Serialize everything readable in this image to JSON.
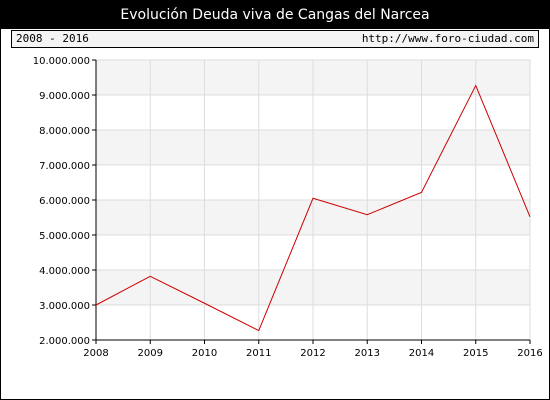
{
  "header": {
    "title": "Evolución Deuda viva de Cangas del Narcea",
    "range": "2008 - 2016",
    "url": "http://www.foro-ciudad.com"
  },
  "colors": {
    "line": "#cc0000",
    "band": "#f4f4f4",
    "grid": "#dddddd"
  },
  "chart_data": {
    "type": "line",
    "title": "Evolución Deuda viva de Cangas del Narcea",
    "x": [
      2008,
      2009,
      2010,
      2011,
      2012,
      2013,
      2014,
      2015,
      2016
    ],
    "series": [
      {
        "values": [
          3000000,
          3820000,
          3050000,
          2270000,
          6050000,
          5580000,
          6220000,
          9270000,
          5520000
        ]
      }
    ],
    "x_tick_labels": [
      "2008",
      "2009",
      "2010",
      "2011",
      "2012",
      "2013",
      "2014",
      "2015",
      "2016"
    ],
    "y_tick_labels": [
      "2.000.000",
      "3.000.000",
      "4.000.000",
      "5.000.000",
      "6.000.000",
      "7.000.000",
      "8.000.000",
      "9.000.000",
      "10.000.000"
    ],
    "y_ticks": [
      2000000,
      3000000,
      4000000,
      5000000,
      6000000,
      7000000,
      8000000,
      9000000,
      10000000
    ],
    "ylim": [
      2000000,
      10000000
    ],
    "xlim": [
      2008,
      2016
    ],
    "grid": true,
    "legend": "none"
  }
}
